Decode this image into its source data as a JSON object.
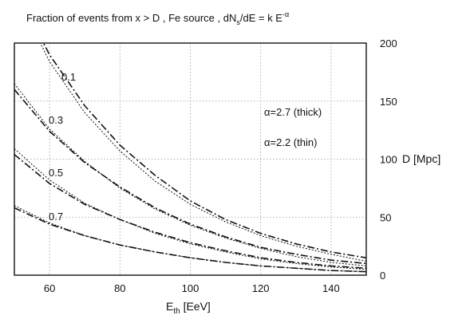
{
  "chart_data": {
    "type": "line",
    "title_parts": {
      "main": "Fraction of events from x > D ,   Fe source  , dN",
      "sub_s": "s",
      "mid": "/dE = k E",
      "sup": "-α"
    },
    "xlabel": {
      "main": "E",
      "sub": "th",
      "rest": " [EeV]"
    },
    "ylabel": "D [Mpc]",
    "xlim": [
      50,
      150
    ],
    "ylim": [
      0,
      200
    ],
    "xticks": [
      "60",
      "80",
      "100",
      "120",
      "140"
    ],
    "xtick_values": [
      60,
      80,
      100,
      120,
      140
    ],
    "yticks": [
      "0",
      "50",
      "100",
      "150",
      "200"
    ],
    "ytick_values": [
      0,
      50,
      100,
      150,
      200
    ],
    "grid": true,
    "annotations": [
      "α=2.7  (thick)",
      "α=2.2  (thin)"
    ],
    "curve_labels": [
      "0.1",
      "0.3",
      "0.5",
      "0.7"
    ],
    "x": [
      50,
      60,
      70,
      80,
      90,
      100,
      110,
      120,
      130,
      140,
      150
    ],
    "series": [
      {
        "fraction": "0.1",
        "alpha": "2.7",
        "style": "thick",
        "values": [
          248,
          190,
          146,
          112,
          86,
          64,
          48,
          36,
          27,
          20,
          15
        ]
      },
      {
        "fraction": "0.1",
        "alpha": "2.2",
        "style": "thin",
        "values": [
          245,
          184,
          140,
          107,
          81,
          61,
          46,
          34,
          25,
          18,
          12
        ]
      },
      {
        "fraction": "0.3",
        "alpha": "2.7",
        "style": "thick",
        "values": [
          160,
          124,
          97,
          76,
          58,
          44,
          33,
          24,
          18,
          13,
          10
        ]
      },
      {
        "fraction": "0.3",
        "alpha": "2.2",
        "style": "thin",
        "values": [
          165,
          126,
          98,
          75,
          57,
          43,
          32,
          23,
          16,
          11,
          8
        ]
      },
      {
        "fraction": "0.5",
        "alpha": "2.7",
        "style": "thick",
        "values": [
          104,
          79,
          61,
          48,
          37,
          28,
          21,
          15,
          11,
          8,
          6
        ]
      },
      {
        "fraction": "0.5",
        "alpha": "2.2",
        "style": "thin",
        "values": [
          109,
          82,
          62,
          48,
          36,
          27,
          20,
          14,
          10,
          7,
          5
        ]
      },
      {
        "fraction": "0.7",
        "alpha": "2.7",
        "style": "thick",
        "values": [
          58,
          44,
          34,
          26,
          20,
          15,
          11,
          8,
          6,
          4,
          3
        ]
      },
      {
        "fraction": "0.7",
        "alpha": "2.2",
        "style": "thin",
        "values": [
          60,
          45,
          34,
          26,
          20,
          15,
          11,
          8,
          6,
          4,
          3
        ]
      }
    ]
  }
}
